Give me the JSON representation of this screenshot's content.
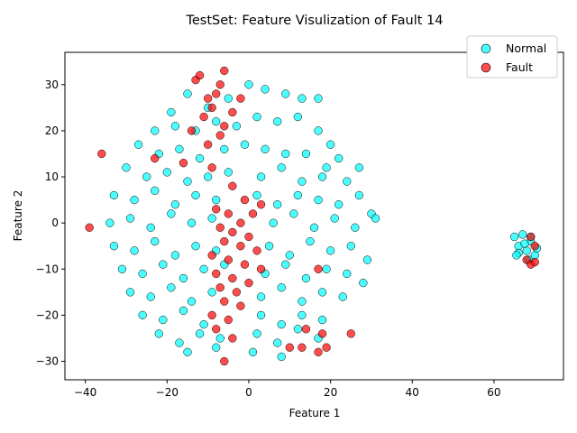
{
  "chart_data": {
    "type": "scatter",
    "title": "TestSet: Feature Visulization of Fault 14",
    "xlabel": "Feature 1",
    "ylabel": "Feature 2",
    "xlim": [
      -45,
      77
    ],
    "ylim": [
      -34,
      37
    ],
    "xticks": [
      -40,
      -20,
      0,
      20,
      40,
      60
    ],
    "yticks": [
      -30,
      -20,
      -10,
      0,
      10,
      20,
      30
    ],
    "grid": false,
    "legend_position": "top-right",
    "series": [
      {
        "name": "Normal",
        "color": "#00FFFF",
        "edge": "#000000",
        "alpha": 0.7,
        "main_cluster_points": [
          [
            -19,
            24
          ],
          [
            -15,
            28
          ],
          [
            -10,
            25
          ],
          [
            -5,
            27
          ],
          [
            0,
            30
          ],
          [
            4,
            29
          ],
          [
            9,
            28
          ],
          [
            13,
            27
          ],
          [
            17,
            27
          ],
          [
            -23,
            20
          ],
          [
            -18,
            21
          ],
          [
            -13,
            20
          ],
          [
            -8,
            22
          ],
          [
            -3,
            21
          ],
          [
            2,
            23
          ],
          [
            7,
            22
          ],
          [
            12,
            23
          ],
          [
            17,
            20
          ],
          [
            20,
            17
          ],
          [
            -27,
            17
          ],
          [
            -22,
            15
          ],
          [
            -17,
            16
          ],
          [
            -12,
            14
          ],
          [
            -6,
            16
          ],
          [
            -1,
            17
          ],
          [
            4,
            16
          ],
          [
            9,
            15
          ],
          [
            14,
            15
          ],
          [
            19,
            12
          ],
          [
            22,
            14
          ],
          [
            -30,
            12
          ],
          [
            -25,
            10
          ],
          [
            -20,
            11
          ],
          [
            -15,
            9
          ],
          [
            -10,
            10
          ],
          [
            -5,
            11
          ],
          [
            3,
            10
          ],
          [
            8,
            12
          ],
          [
            13,
            9
          ],
          [
            18,
            10
          ],
          [
            24,
            9
          ],
          [
            27,
            12
          ],
          [
            -33,
            6
          ],
          [
            -28,
            5
          ],
          [
            -23,
            7
          ],
          [
            -18,
            4
          ],
          [
            -13,
            6
          ],
          [
            -8,
            5
          ],
          [
            2,
            6
          ],
          [
            7,
            4
          ],
          [
            12,
            6
          ],
          [
            17,
            5
          ],
          [
            22,
            4
          ],
          [
            27,
            6
          ],
          [
            30,
            2
          ],
          [
            -34,
            0
          ],
          [
            -29,
            1
          ],
          [
            -24,
            -1
          ],
          [
            -19,
            2
          ],
          [
            -14,
            0
          ],
          [
            -9,
            1
          ],
          [
            6,
            0
          ],
          [
            11,
            2
          ],
          [
            16,
            -1
          ],
          [
            21,
            1
          ],
          [
            26,
            -1
          ],
          [
            31,
            1
          ],
          [
            -33,
            -5
          ],
          [
            -28,
            -6
          ],
          [
            -23,
            -4
          ],
          [
            -18,
            -7
          ],
          [
            -13,
            -5
          ],
          [
            -8,
            -6
          ],
          [
            5,
            -5
          ],
          [
            10,
            -7
          ],
          [
            15,
            -4
          ],
          [
            20,
            -6
          ],
          [
            25,
            -5
          ],
          [
            29,
            -8
          ],
          [
            -31,
            -10
          ],
          [
            -26,
            -11
          ],
          [
            -21,
            -9
          ],
          [
            -16,
            -12
          ],
          [
            -11,
            -10
          ],
          [
            -6,
            -9
          ],
          [
            4,
            -11
          ],
          [
            9,
            -9
          ],
          [
            14,
            -12
          ],
          [
            19,
            -10
          ],
          [
            24,
            -11
          ],
          [
            28,
            -13
          ],
          [
            -29,
            -15
          ],
          [
            -24,
            -16
          ],
          [
            -19,
            -14
          ],
          [
            -14,
            -17
          ],
          [
            -9,
            -15
          ],
          [
            3,
            -16
          ],
          [
            8,
            -14
          ],
          [
            13,
            -17
          ],
          [
            18,
            -15
          ],
          [
            23,
            -16
          ],
          [
            -26,
            -20
          ],
          [
            -21,
            -21
          ],
          [
            -16,
            -19
          ],
          [
            -11,
            -22
          ],
          [
            3,
            -20
          ],
          [
            8,
            -22
          ],
          [
            13,
            -20
          ],
          [
            18,
            -21
          ],
          [
            -22,
            -24
          ],
          [
            -17,
            -26
          ],
          [
            -12,
            -24
          ],
          [
            -7,
            -25
          ],
          [
            2,
            -24
          ],
          [
            7,
            -26
          ],
          [
            12,
            -23
          ],
          [
            17,
            -25
          ],
          [
            -15,
            -28
          ],
          [
            -8,
            -27
          ],
          [
            1,
            -28
          ],
          [
            8,
            -29
          ]
        ],
        "right_cluster_points": [
          [
            65,
            -3
          ],
          [
            66,
            -5
          ],
          [
            67,
            -2.5
          ],
          [
            68,
            -6
          ],
          [
            69,
            -4
          ],
          [
            70,
            -7
          ],
          [
            66,
            -6.5
          ],
          [
            67.5,
            -4.5
          ],
          [
            69,
            -3
          ],
          [
            70.5,
            -5.5
          ],
          [
            65.5,
            -7
          ],
          [
            68.5,
            -8
          ]
        ]
      },
      {
        "name": "Fault",
        "color": "#FF0000",
        "edge": "#000000",
        "alpha": 0.7,
        "points": [
          [
            -36,
            15
          ],
          [
            -39,
            -1
          ],
          [
            -6,
            33
          ],
          [
            -13,
            31
          ],
          [
            -12,
            32
          ],
          [
            -7,
            30
          ],
          [
            -8,
            28
          ],
          [
            -10,
            27
          ],
          [
            -2,
            27
          ],
          [
            -9,
            25
          ],
          [
            -4,
            24
          ],
          [
            -11,
            23
          ],
          [
            -6,
            21
          ],
          [
            -14,
            20
          ],
          [
            -7,
            19
          ],
          [
            -10,
            17
          ],
          [
            -23,
            14
          ],
          [
            -16,
            13
          ],
          [
            -9,
            12
          ],
          [
            -4,
            8
          ],
          [
            -1,
            5
          ],
          [
            3,
            4
          ],
          [
            -8,
            3
          ],
          [
            -5,
            2
          ],
          [
            1,
            2
          ],
          [
            -2,
            0
          ],
          [
            -7,
            -1
          ],
          [
            -4,
            -2
          ],
          [
            0,
            -3
          ],
          [
            -6,
            -4
          ],
          [
            -2,
            -5
          ],
          [
            2,
            -6
          ],
          [
            -9,
            -7
          ],
          [
            -5,
            -8
          ],
          [
            -1,
            -9
          ],
          [
            3,
            -10
          ],
          [
            -8,
            -11
          ],
          [
            -4,
            -12
          ],
          [
            0,
            -13
          ],
          [
            -7,
            -14
          ],
          [
            -3,
            -15
          ],
          [
            -6,
            -17
          ],
          [
            -2,
            -18
          ],
          [
            -9,
            -20
          ],
          [
            -5,
            -21
          ],
          [
            -8,
            -23
          ],
          [
            -4,
            -25
          ],
          [
            -6,
            -30
          ],
          [
            17,
            -10
          ],
          [
            14,
            -23
          ],
          [
            18,
            -24
          ],
          [
            19,
            -27
          ],
          [
            10,
            -27
          ],
          [
            13,
            -27
          ],
          [
            17,
            -28
          ],
          [
            25,
            -24
          ],
          [
            69,
            -3
          ],
          [
            70,
            -5
          ],
          [
            68,
            -8
          ],
          [
            69,
            -9
          ],
          [
            70,
            -8.5
          ]
        ]
      }
    ]
  }
}
